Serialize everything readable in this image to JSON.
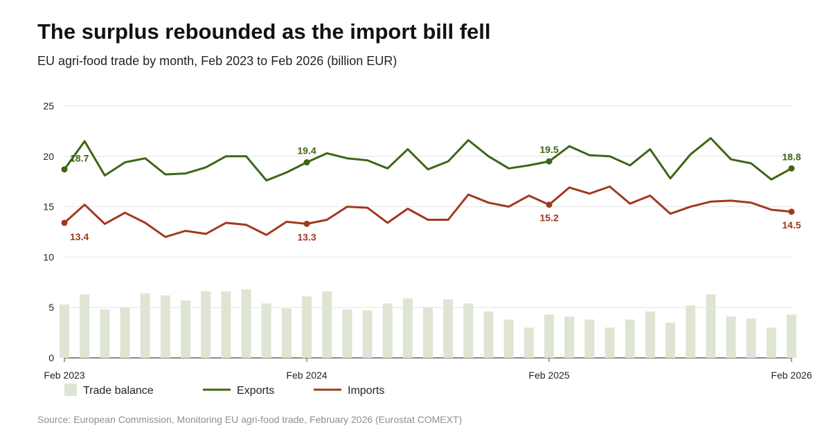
{
  "title": "The surplus rebounded as the import bill fell",
  "subtitle": "EU agri-food trade by month, Feb 2023 to Feb 2026 (billion EUR)",
  "source": "Source: European Commission, Monitoring EU agri-food trade, February 2026 (Eurostat COMEXT)",
  "colors": {
    "exports": "#3d6614",
    "imports": "#a0391e",
    "balance": "#dfe5d3",
    "grid": "#e3e3e3"
  },
  "chart_data": {
    "type": "line",
    "ylim": [
      0,
      25
    ],
    "yticks": [
      "0",
      "5",
      "10",
      "15",
      "20",
      "25"
    ],
    "x_tick_labels": [
      {
        "index": 0,
        "label": "Feb 2023"
      },
      {
        "index": 12,
        "label": "Feb 2024"
      },
      {
        "index": 24,
        "label": "Feb 2025"
      },
      {
        "index": 36,
        "label": "Feb 2026"
      }
    ],
    "x": [
      "2023-02",
      "2023-03",
      "2023-04",
      "2023-05",
      "2023-06",
      "2023-07",
      "2023-08",
      "2023-09",
      "2023-10",
      "2023-11",
      "2023-12",
      "2024-01",
      "2024-02",
      "2024-03",
      "2024-04",
      "2024-05",
      "2024-06",
      "2024-07",
      "2024-08",
      "2024-09",
      "2024-10",
      "2024-11",
      "2024-12",
      "2025-01",
      "2025-02",
      "2025-03",
      "2025-04",
      "2025-05",
      "2025-06",
      "2025-07",
      "2025-08",
      "2025-09",
      "2025-10",
      "2025-11",
      "2025-12",
      "2026-01",
      "2026-02"
    ],
    "series": [
      {
        "name": "Exports",
        "type": "line",
        "values": [
          18.7,
          21.5,
          18.1,
          19.4,
          19.8,
          18.2,
          18.3,
          18.9,
          20.0,
          20.0,
          17.6,
          18.4,
          19.4,
          20.3,
          19.8,
          19.6,
          18.8,
          20.7,
          18.7,
          19.5,
          21.6,
          20.0,
          18.8,
          19.1,
          19.5,
          21.0,
          20.1,
          20.0,
          19.1,
          20.7,
          17.8,
          20.2,
          21.8,
          19.7,
          19.3,
          17.7,
          18.8
        ]
      },
      {
        "name": "Imports",
        "type": "line",
        "values": [
          13.4,
          15.2,
          13.3,
          14.4,
          13.4,
          12.0,
          12.6,
          12.3,
          13.4,
          13.2,
          12.2,
          13.5,
          13.3,
          13.7,
          15.0,
          14.9,
          13.4,
          14.8,
          13.7,
          13.7,
          16.2,
          15.4,
          15.0,
          16.1,
          15.2,
          16.9,
          16.3,
          17.0,
          15.3,
          16.1,
          14.3,
          15.0,
          15.5,
          15.6,
          15.4,
          14.7,
          14.5
        ]
      },
      {
        "name": "Trade balance",
        "type": "bar",
        "values": [
          5.3,
          6.3,
          4.8,
          5.0,
          6.4,
          6.2,
          5.7,
          6.6,
          6.6,
          6.8,
          5.4,
          4.9,
          6.1,
          6.6,
          4.8,
          4.7,
          5.4,
          5.9,
          5.0,
          5.8,
          5.4,
          4.6,
          3.8,
          3.0,
          4.3,
          4.1,
          3.8,
          3.0,
          3.8,
          4.6,
          3.5,
          5.2,
          6.3,
          4.1,
          3.9,
          3.0,
          4.3
        ]
      }
    ],
    "annotations": [
      {
        "series": "Exports",
        "index": 0,
        "text": "18.7"
      },
      {
        "series": "Exports",
        "index": 12,
        "text": "19.4"
      },
      {
        "series": "Exports",
        "index": 24,
        "text": "19.5"
      },
      {
        "series": "Exports",
        "index": 36,
        "text": "18.8"
      },
      {
        "series": "Imports",
        "index": 0,
        "text": "13.4"
      },
      {
        "series": "Imports",
        "index": 12,
        "text": "13.3"
      },
      {
        "series": "Imports",
        "index": 24,
        "text": "15.2"
      },
      {
        "series": "Imports",
        "index": 36,
        "text": "14.5"
      }
    ],
    "legend": {
      "position": "bottom-left",
      "items": [
        {
          "label": "Trade balance",
          "kind": "bar",
          "color_key": "balance"
        },
        {
          "label": "Exports",
          "kind": "line",
          "color_key": "exports"
        },
        {
          "label": "Imports",
          "kind": "line",
          "color_key": "imports"
        }
      ]
    },
    "grid": true
  }
}
